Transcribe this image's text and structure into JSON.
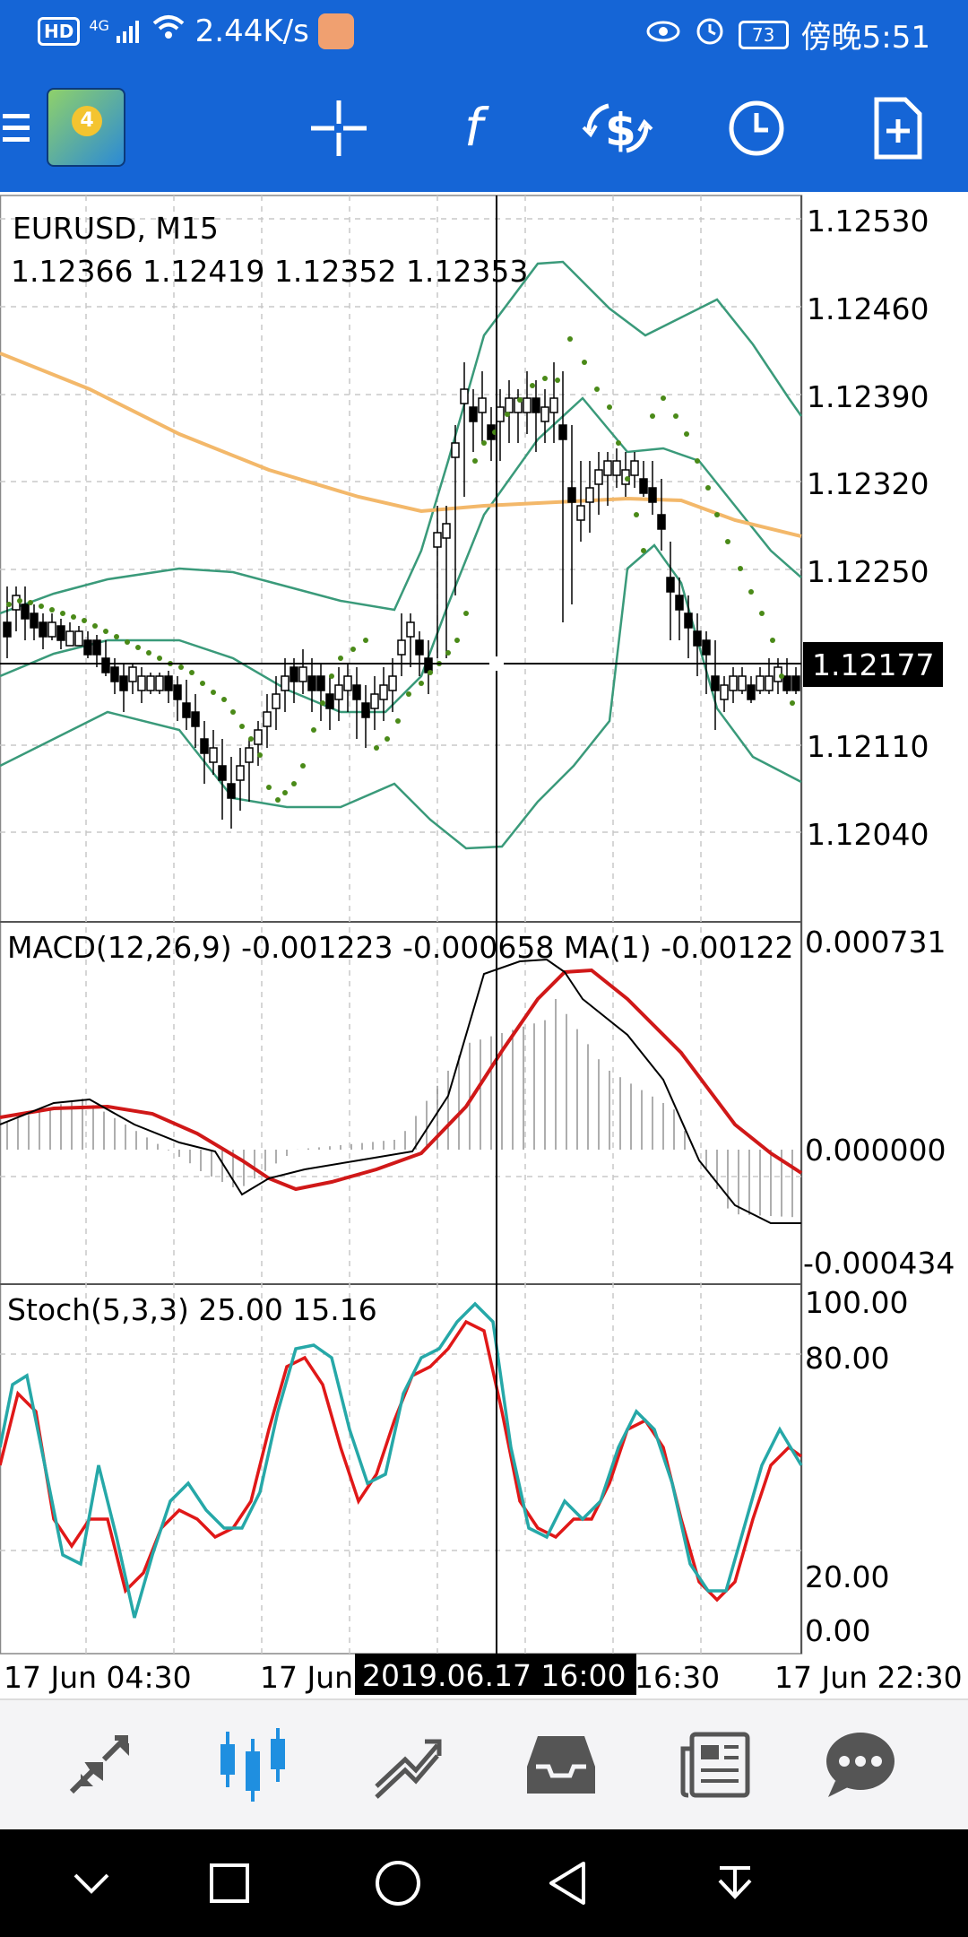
{
  "status_bar": {
    "hd": "HD",
    "network": "4G",
    "speed": "2.44K/s",
    "battery": "73",
    "time": "傍晚5:51"
  },
  "toolbar": {
    "menu_icon": "hamburger-menu-icon",
    "logo": "metatrader-4-logo",
    "logo_badge": "4",
    "items": [
      "crosshair-icon",
      "indicators-f-icon",
      "dollar-cycle-icon",
      "clock-icon",
      "new-document-icon"
    ]
  },
  "chart": {
    "symbol_label": "EURUSD, M15",
    "ohlc": "1.12366 1.12419 1.12352 1.12353",
    "price_ticks": [
      "1.12530",
      "1.12460",
      "1.12390",
      "1.12320",
      "1.12250",
      "1.12110",
      "1.12040"
    ],
    "current_price": "1.12177",
    "macd_label": "MACD(12,26,9) -0.001223 -0.000658 MA(1) -0.00122",
    "macd_ticks": [
      "0.000731",
      "0.000000",
      "-0.000434"
    ],
    "stoch_label": "Stoch(5,3,3) 25.00 15.16",
    "stoch_ticks": [
      "100.00",
      "80.00",
      "20.00",
      "0.00"
    ],
    "time_labels": [
      "17 Jun 04:30",
      "17 Jun",
      "16:30",
      "17 Jun 22:30"
    ],
    "crosshair_time": "2019.06.17 16:00",
    "colors": {
      "bull_candle": "#ffffff",
      "bear_candle": "#000000",
      "bollinger": "#3a9a7a",
      "moving_average": "#f3b86a",
      "parabolic_sar": "#4a8a18",
      "macd_signal": "#d01818",
      "stoch_main": "#26a8a8",
      "stoch_signal": "#e01818",
      "price_tag_bg": "#000000"
    }
  },
  "bottom_nav": {
    "items": [
      "quotes-arrows-icon",
      "chart-candles-icon",
      "trade-icon",
      "history-inbox-icon",
      "news-icon",
      "chat-bubble-icon"
    ],
    "active_index": 1
  },
  "system_nav": {
    "items": [
      "down-chevron-icon",
      "recents-square-icon",
      "home-circle-icon",
      "back-triangle-icon",
      "notification-pull-icon"
    ]
  }
}
